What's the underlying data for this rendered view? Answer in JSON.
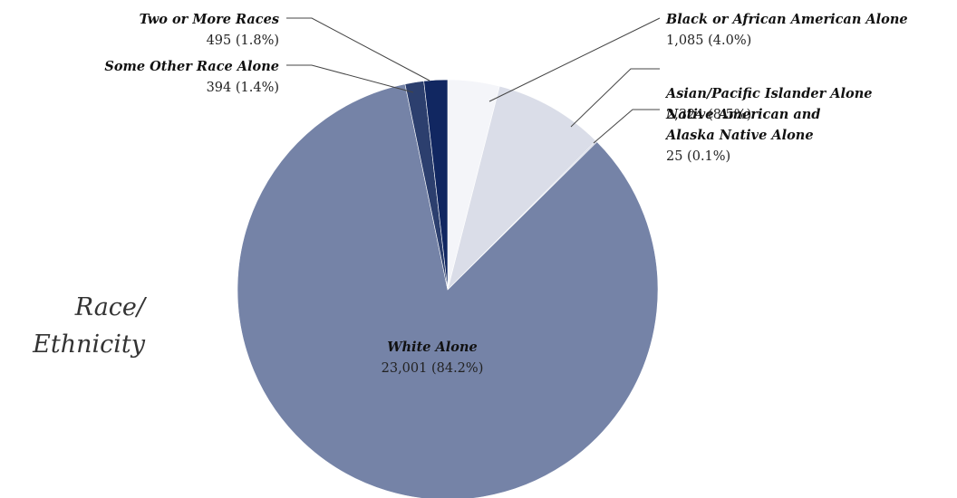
{
  "chart_data": {
    "type": "pie",
    "title": "Race/ Ethnicity",
    "title_lines": [
      "Race/",
      "Ethnicity"
    ],
    "slices": [
      {
        "key": "black",
        "name": "Black or African American Alone",
        "name_lines": [
          "Black or African American Alone"
        ],
        "value": 1085,
        "value_label": "1,085 (4.0%)",
        "percent": 4.0,
        "color": "#f4f5f9"
      },
      {
        "key": "asian",
        "name": "Asian/Pacific Islander Alone",
        "name_lines": [
          "Asian/Pacific Islander Alone"
        ],
        "value": 2324,
        "value_label": "2,324 (8.5%)",
        "percent": 8.5,
        "color": "#dadde8"
      },
      {
        "key": "native",
        "name": "Native American and Alaska Native Alone",
        "name_lines": [
          "Native American and",
          "Alaska Native Alone"
        ],
        "value": 25,
        "value_label": "25 (0.1%)",
        "percent": 0.1,
        "color": "#b9bfd4"
      },
      {
        "key": "white",
        "name": "White Alone",
        "name_lines": [
          "White Alone"
        ],
        "value": 23001,
        "value_label": "23,001 (84.2%)",
        "percent": 84.2,
        "color": "#7583a7"
      },
      {
        "key": "other",
        "name": "Some Other Race Alone",
        "name_lines": [
          "Some Other Race Alone"
        ],
        "value": 394,
        "value_label": "394 (1.4%)",
        "percent": 1.4,
        "color": "#2c3f6e"
      },
      {
        "key": "two",
        "name": "Two or More Races",
        "name_lines": [
          "Two or More Races"
        ],
        "value": 495,
        "value_label": "495 (1.8%)",
        "percent": 1.8,
        "color": "#112761"
      }
    ]
  }
}
